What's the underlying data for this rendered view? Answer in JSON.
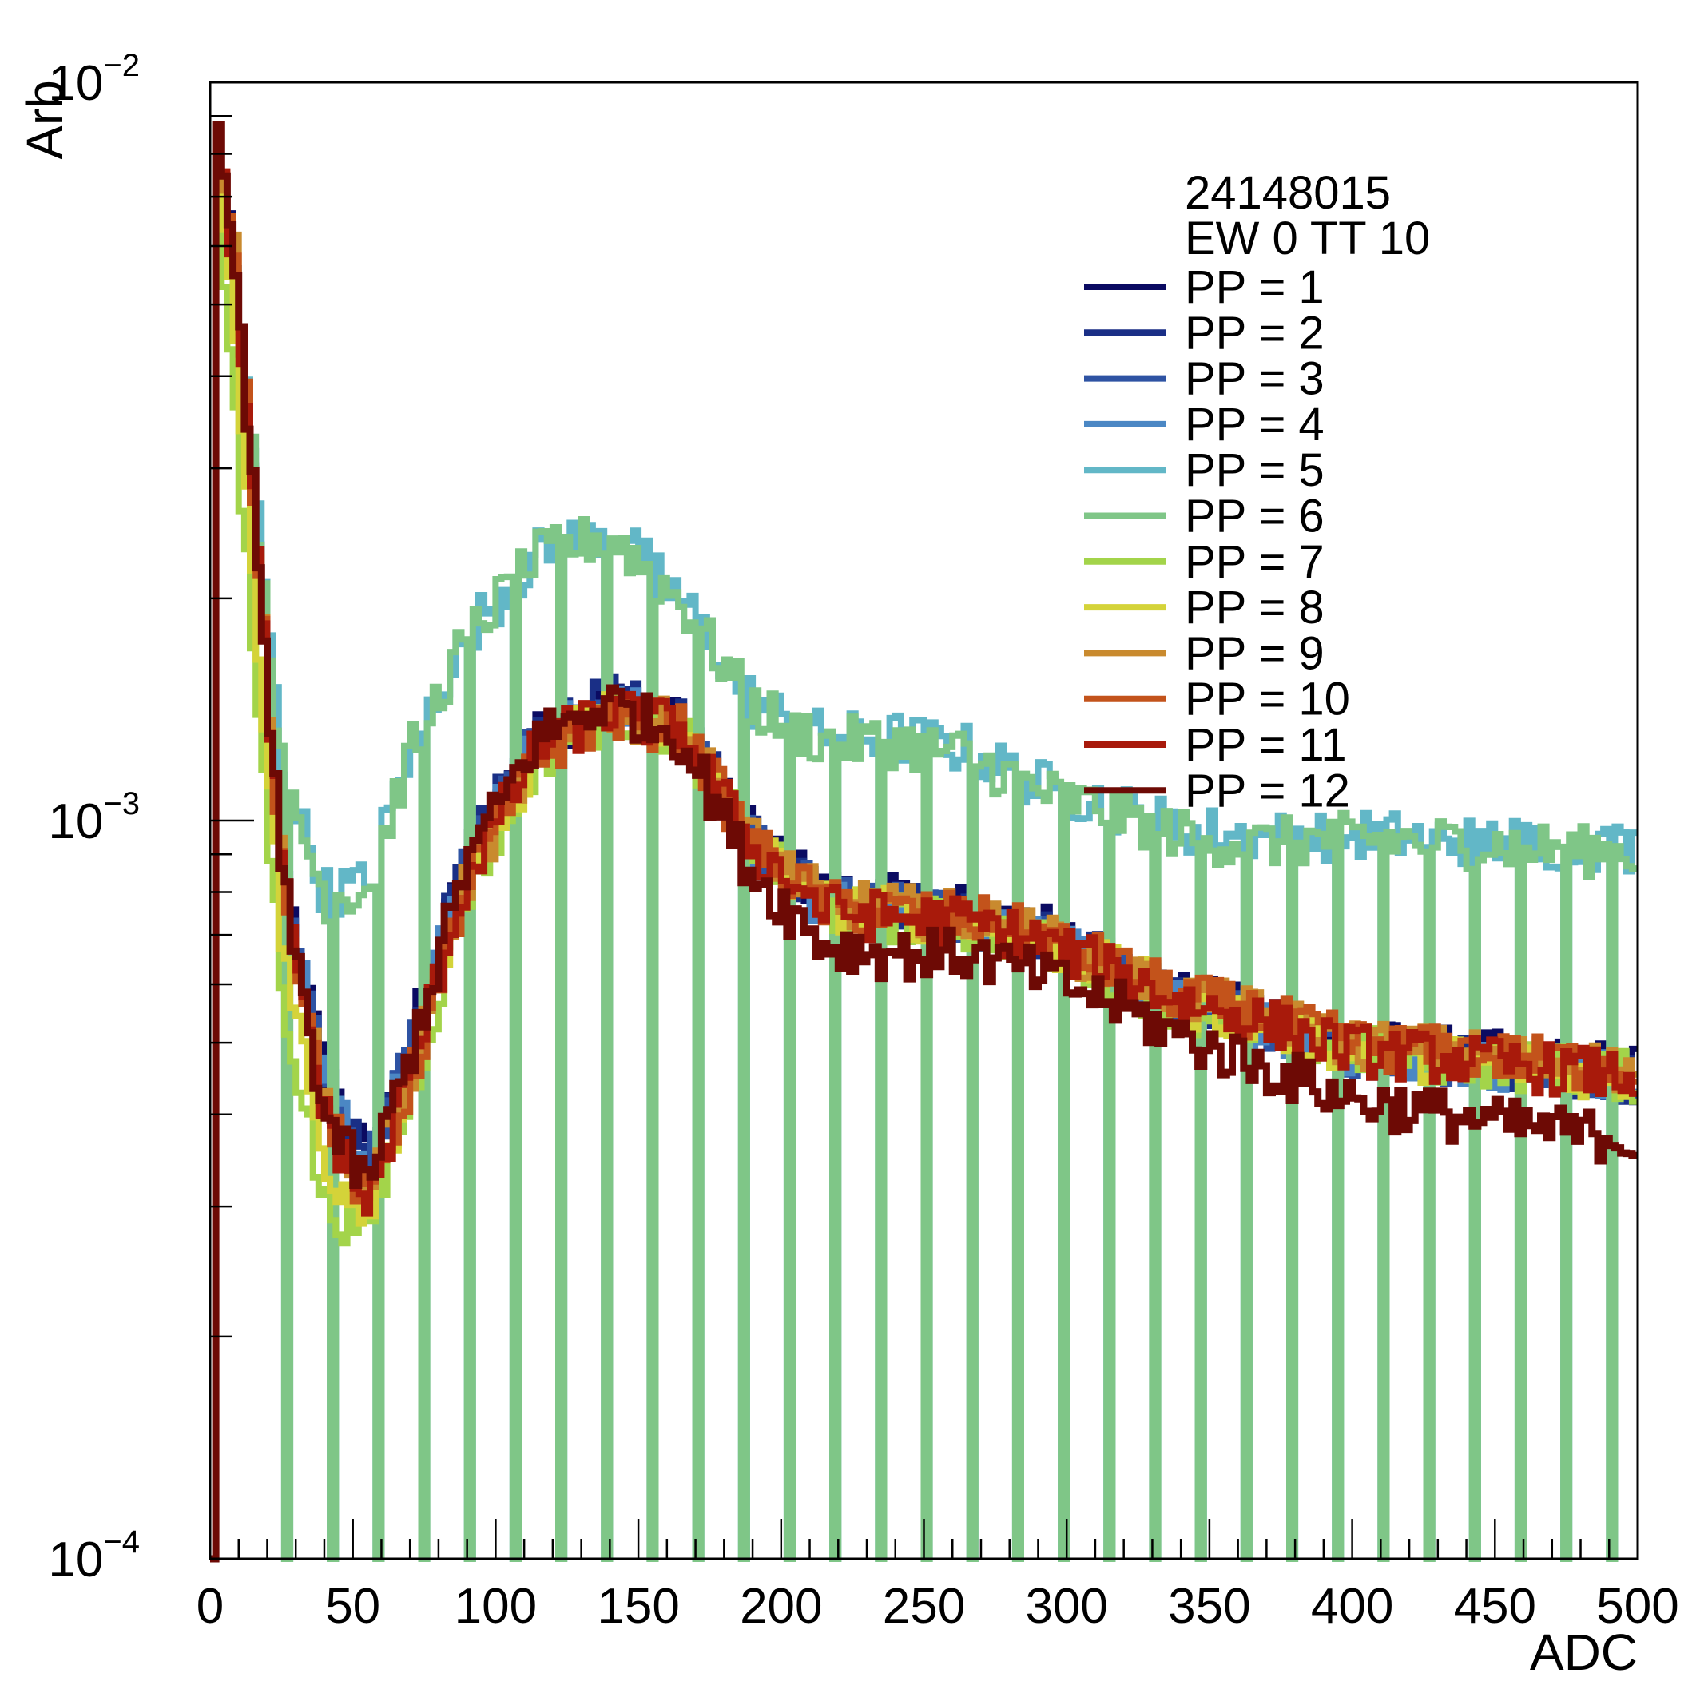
{
  "chart_data": {
    "type": "line",
    "title": "",
    "xlabel": "ADC",
    "ylabel": "Arb",
    "xlim": [
      0,
      500
    ],
    "ylim": [
      0.0001,
      0.01
    ],
    "yscale": "log",
    "x_ticks": [
      "0",
      "50",
      "100",
      "150",
      "200",
      "250",
      "300",
      "350",
      "400",
      "450",
      "500"
    ],
    "y_ticks": [
      {
        "base": "10",
        "exp": "−4",
        "value": 0.0001
      },
      {
        "base": "10",
        "exp": "−3",
        "value": 0.001
      },
      {
        "base": "10",
        "exp": "−2",
        "value": 0.01
      }
    ],
    "legend_header": [
      "24148015",
      "EW 0 TT 10"
    ],
    "legend_position": "top-right",
    "grid": false,
    "series": [
      {
        "name": "PP = 1",
        "color": "#0b0b62",
        "y": [
          0.01,
          0.005,
          0.0009,
          0.00045,
          0.00035,
          0.0005,
          0.0009,
          0.0013,
          0.00145,
          0.00135,
          0.00095,
          0.0008,
          0.00078,
          0.00076,
          0.00072,
          0.00065,
          0.00058,
          0.00055,
          0.0005,
          0.00048,
          0.00046
        ]
      },
      {
        "name": "PP = 2",
        "color": "#1a2f86",
        "y": [
          0.01,
          0.005,
          0.0009,
          0.00045,
          0.00035,
          0.0005,
          0.0009,
          0.00132,
          0.00146,
          0.00136,
          0.00094,
          0.00079,
          0.00077,
          0.00075,
          0.00071,
          0.00064,
          0.00057,
          0.00054,
          0.00049,
          0.00047,
          0.00045
        ]
      },
      {
        "name": "PP = 3",
        "color": "#2e53a3",
        "y": [
          0.01,
          0.005,
          0.00089,
          0.00044,
          0.00034,
          0.00049,
          0.00088,
          0.0013,
          0.00144,
          0.00134,
          0.00093,
          0.00078,
          0.00076,
          0.00074,
          0.0007,
          0.00063,
          0.00057,
          0.00054,
          0.00049,
          0.00047,
          0.00045
        ]
      },
      {
        "name": "PP = 4",
        "color": "#4b87c4",
        "y": [
          0.01,
          0.0049,
          0.00088,
          0.00044,
          0.00034,
          0.00049,
          0.00088,
          0.00129,
          0.00143,
          0.00133,
          0.00092,
          0.00077,
          0.00075,
          0.00073,
          0.00069,
          0.00063,
          0.00056,
          0.00053,
          0.00049,
          0.00047,
          0.00045
        ]
      },
      {
        "name": "PP = 5",
        "color": "#62b7c7",
        "y": [
          0.01,
          0.005,
          0.0012,
          0.0008,
          0.00082,
          0.00125,
          0.0018,
          0.0023,
          0.0025,
          0.002,
          0.00145,
          0.0013,
          0.0013,
          0.00125,
          0.00112,
          0.00105,
          0.00098,
          0.00095,
          0.00096,
          0.00094,
          0.00092
        ]
      },
      {
        "name": "PP = 6",
        "color": "#7fc687",
        "y": [
          0.01,
          0.005,
          0.00118,
          0.00079,
          0.00081,
          0.00123,
          0.00178,
          0.00228,
          0.00245,
          0.00198,
          0.00143,
          0.00128,
          0.00128,
          0.00123,
          0.0011,
          0.00103,
          0.00096,
          0.00093,
          0.00095,
          0.00093,
          0.0009
        ]
      },
      {
        "name": "PP = 7",
        "color": "#a3d44a",
        "y": [
          0.01,
          0.003,
          0.0006,
          0.0003,
          0.00028,
          0.00042,
          0.0008,
          0.00122,
          0.0014,
          0.00132,
          0.00092,
          0.00076,
          0.00074,
          0.00072,
          0.00068,
          0.00062,
          0.00056,
          0.00053,
          0.00049,
          0.00047,
          0.00045
        ]
      },
      {
        "name": "PP = 8",
        "color": "#d4d339",
        "y": [
          0.01,
          0.004,
          0.0007,
          0.00034,
          0.0003,
          0.00044,
          0.00082,
          0.00124,
          0.00141,
          0.00133,
          0.00093,
          0.00077,
          0.00075,
          0.00073,
          0.00069,
          0.00063,
          0.00057,
          0.00054,
          0.00049,
          0.00047,
          0.00045
        ]
      },
      {
        "name": "PP = 9",
        "color": "#c98a2e",
        "y": [
          0.01,
          0.0055,
          0.0009,
          0.00042,
          0.00031,
          0.00045,
          0.00083,
          0.00124,
          0.0014,
          0.00134,
          0.00094,
          0.00078,
          0.00076,
          0.00074,
          0.0007,
          0.00064,
          0.00058,
          0.00055,
          0.0005,
          0.00048,
          0.00046
        ]
      },
      {
        "name": "PP = 10",
        "color": "#c3531b",
        "y": [
          0.01,
          0.0052,
          0.00088,
          0.00041,
          0.0003,
          0.00044,
          0.00082,
          0.00123,
          0.00139,
          0.00133,
          0.00093,
          0.00077,
          0.00075,
          0.00074,
          0.0007,
          0.00064,
          0.00058,
          0.00055,
          0.0005,
          0.00048,
          0.00046
        ]
      },
      {
        "name": "PP = 11",
        "color": "#a81a0b",
        "y": [
          0.01,
          0.005,
          0.00086,
          0.0004,
          0.0003,
          0.00045,
          0.00084,
          0.00126,
          0.00141,
          0.00133,
          0.00092,
          0.00076,
          0.00074,
          0.00073,
          0.00069,
          0.00063,
          0.00057,
          0.00054,
          0.00049,
          0.00047,
          0.00045
        ]
      },
      {
        "name": "PP = 12",
        "color": "#6d0a05",
        "y": [
          0.01,
          0.005,
          0.00085,
          0.0004,
          0.00032,
          0.00048,
          0.00088,
          0.0013,
          0.00145,
          0.0013,
          0.00085,
          0.00068,
          0.00066,
          0.00066,
          0.00062,
          0.00057,
          0.00051,
          0.00047,
          0.00042,
          0.00039,
          0.00037
        ]
      }
    ],
    "x": [
      0,
      10,
      25,
      40,
      55,
      70,
      90,
      115,
      140,
      165,
      190,
      215,
      240,
      265,
      290,
      315,
      340,
      365,
      400,
      450,
      500
    ]
  }
}
